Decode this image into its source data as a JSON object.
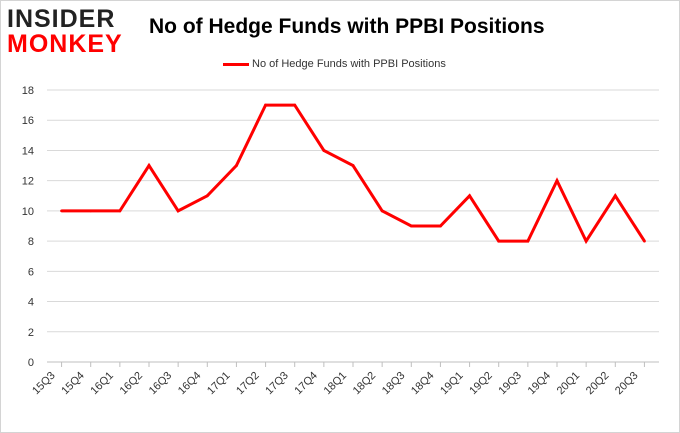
{
  "brand": {
    "logo_top": "INSIDER",
    "logo_bottom": "MONKEY"
  },
  "colors": {
    "series": "#ff0000",
    "grid": "#d9d9d9",
    "axis": "#bfbfbf",
    "brand_dark": "#222222",
    "brand_red": "#ff0000"
  },
  "chart_data": {
    "type": "line",
    "title": "No of Hedge Funds with PPBI Positions",
    "xlabel": "",
    "ylabel": "",
    "ylim": [
      0,
      18
    ],
    "yticks": [
      0,
      2,
      4,
      6,
      8,
      10,
      12,
      14,
      16,
      18
    ],
    "grid": true,
    "legend_position": "top-center",
    "categories": [
      "15Q3",
      "15Q4",
      "16Q1",
      "16Q2",
      "16Q3",
      "16Q4",
      "17Q1",
      "17Q2",
      "17Q3",
      "17Q4",
      "18Q1",
      "18Q2",
      "18Q3",
      "18Q4",
      "19Q1",
      "19Q2",
      "19Q3",
      "19Q4",
      "20Q1",
      "20Q2",
      "20Q3"
    ],
    "series": [
      {
        "name": "No of Hedge Funds with PPBI Positions",
        "values": [
          10,
          10,
          10,
          13,
          10,
          11,
          13,
          17,
          17,
          14,
          13,
          10,
          9,
          9,
          11,
          8,
          8,
          12,
          8,
          11,
          8
        ]
      }
    ]
  }
}
